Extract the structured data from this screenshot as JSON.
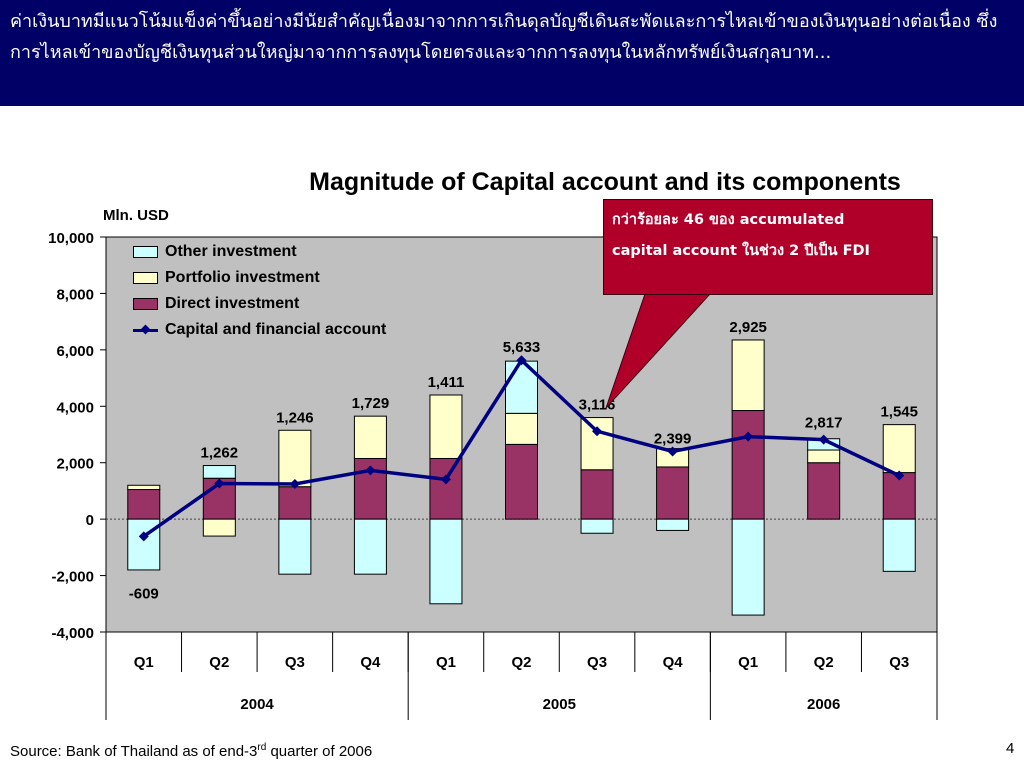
{
  "header": {
    "text": "ค่าเงินบาทมีแนวโน้มแข็งค่าขึ้นอย่างมีนัยสำคัญเนื่องมาจากการเกินดุลบัญชีเดินสะพัดและการไหลเข้าของเงินทุนอย่างต่อเนื่อง ซึ่งการไหลเข้าของบัญชีเงินทุนส่วนใหญ่มาจากการลงทุนโดยตรงและจากการลงทุนในหลักทรัพย์เงินสกุลบาท..."
  },
  "callout": {
    "line1": "กว่าร้อยละ 46 ของ accumulated",
    "line2": "capital account ในช่วง 2 ปีเป็น FDI"
  },
  "footer": {
    "source_prefix": "Source: Bank of Thailand as of end-3",
    "source_sup": "rd",
    "source_suffix": " quarter of 2006",
    "page_number": "4"
  },
  "colors": {
    "header_bg": "#000066",
    "plot_bg": "#c0c0c0",
    "other_investment": "#ccffff",
    "portfolio_investment": "#ffffcc",
    "direct_investment": "#993366",
    "capital_line": "#000080",
    "callout_bg": "#b0002a"
  },
  "chart_data": {
    "type": "bar",
    "title": "Magnitude of Capital account and its components",
    "ylabel": "Mln. USD",
    "ylim": [
      -4000,
      10000
    ],
    "yticks": [
      "10,000",
      "8,000",
      "6,000",
      "4,000",
      "2,000",
      "0",
      "-2,000",
      "-4,000"
    ],
    "grid": false,
    "legend_position": "top-left",
    "categories": [
      "Q1",
      "Q2",
      "Q3",
      "Q4",
      "Q1",
      "Q2",
      "Q3",
      "Q4",
      "Q1",
      "Q2",
      "Q3"
    ],
    "years": [
      {
        "label": "2004",
        "span": 4
      },
      {
        "label": "2005",
        "span": 4
      },
      {
        "label": "2006",
        "span": 3
      }
    ],
    "series": [
      {
        "name": "Other investment",
        "kind": "stacked-bar",
        "values": [
          -1800,
          450,
          -1950,
          -1950,
          -3000,
          1850,
          -500,
          -400,
          -3400,
          400,
          -1850
        ]
      },
      {
        "name": "Portfolio investment",
        "kind": "stacked-bar",
        "values": [
          150,
          -600,
          2000,
          1500,
          2250,
          1100,
          1850,
          650,
          2500,
          450,
          1700
        ]
      },
      {
        "name": "Direct investment",
        "kind": "stacked-bar",
        "values": [
          1050,
          1450,
          1150,
          2150,
          2150,
          2650,
          1750,
          1850,
          3850,
          2000,
          1650
        ]
      },
      {
        "name": "Capital and financial account",
        "kind": "line",
        "values": [
          -609,
          1262,
          1246,
          1729,
          1411,
          5633,
          3116,
          2399,
          2925,
          2817,
          1545
        ]
      }
    ],
    "data_labels": [
      "-609",
      "1,262",
      "1,246",
      "1,729",
      "1,411",
      "5,633",
      "3,116",
      "2,399",
      "2,925",
      "2,817",
      "1,545"
    ]
  }
}
